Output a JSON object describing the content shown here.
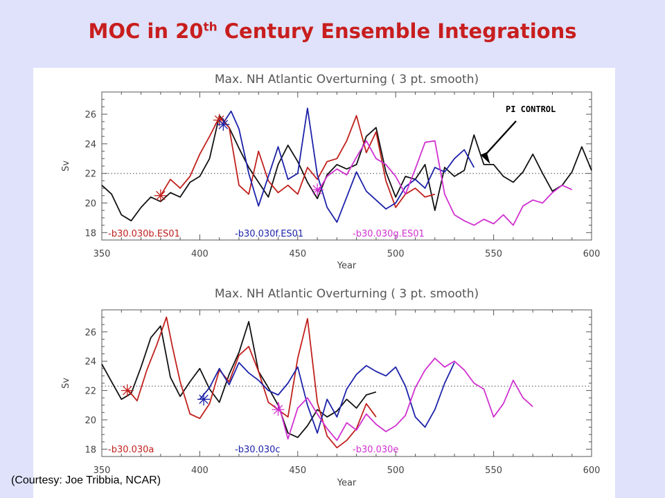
{
  "slide": {
    "title_main": "MOC in 20",
    "title_sup": "th",
    "title_rest": " Century Ensemble Integrations",
    "courtesy": "(Courtesy: Joe Tribbia, NCAR)"
  },
  "colors": {
    "red": "#c0201c",
    "blue": "#1c22a8",
    "magenta": "#d030d0",
    "black": "#111111",
    "title": "#c81e1e"
  },
  "chart_data": [
    {
      "type": "line",
      "title": "Max. NH Atlantic Overturning ( 3 pt. smooth)",
      "xlabel": "Year",
      "ylabel": "Sv",
      "xlim": [
        350,
        600
      ],
      "ylim": [
        17.5,
        27.5
      ],
      "xticks": [
        350,
        400,
        450,
        500,
        550,
        600
      ],
      "yticks": [
        18,
        20,
        22,
        24,
        26
      ],
      "reference_line": 22,
      "annotation": {
        "text": "PI CONTROL",
        "x": 550,
        "y": 22.5
      },
      "series": [
        {
          "name": "b30.030b.ES01",
          "color": "red",
          "x": [
            380,
            385,
            390,
            395,
            400,
            405,
            410,
            415,
            420,
            425,
            430,
            435,
            440,
            445,
            450,
            455,
            460,
            465,
            470,
            475,
            480,
            485,
            490,
            495,
            500,
            505,
            510,
            515,
            520
          ],
          "y": [
            20.5,
            21.6,
            21.0,
            21.8,
            23.3,
            24.5,
            25.8,
            25.1,
            21.2,
            20.6,
            23.5,
            21.5,
            20.7,
            21.2,
            20.6,
            22.4,
            21.6,
            22.8,
            23.0,
            24.2,
            25.9,
            23.4,
            24.8,
            21.5,
            19.7,
            20.6,
            21.0,
            20.4,
            20.6
          ]
        },
        {
          "name": "b30.030f.ES01",
          "color": "blue",
          "x": [
            412,
            416,
            420,
            425,
            430,
            435,
            440,
            445,
            450,
            455,
            460,
            465,
            470,
            475,
            480,
            485,
            490,
            495,
            500,
            505,
            510,
            515,
            520,
            525,
            530,
            535,
            540
          ],
          "y": [
            25.4,
            26.2,
            25.0,
            22.0,
            19.8,
            21.8,
            23.8,
            21.6,
            22.0,
            26.4,
            21.9,
            19.7,
            18.7,
            20.4,
            22.1,
            20.8,
            20.2,
            19.6,
            20.0,
            21.1,
            21.6,
            21.0,
            22.4,
            22.1,
            23.0,
            23.6,
            22.4
          ]
        },
        {
          "name": "b30.030g.ES01",
          "color": "magenta",
          "x": [
            460,
            465,
            470,
            475,
            480,
            485,
            490,
            495,
            500,
            505,
            510,
            515,
            520,
            525,
            530,
            535,
            540,
            545,
            550,
            555,
            560,
            565,
            570,
            575,
            580,
            585,
            590
          ],
          "y": [
            20.7,
            21.8,
            22.3,
            21.9,
            23.1,
            24.2,
            23.0,
            22.6,
            21.8,
            20.6,
            22.3,
            24.1,
            24.2,
            20.6,
            19.2,
            18.8,
            18.5,
            18.9,
            18.6,
            19.2,
            18.5,
            19.8,
            20.2,
            20.0,
            20.7,
            21.2,
            20.9
          ]
        },
        {
          "name": "PI CONTROL",
          "color": "black",
          "x": [
            350,
            355,
            360,
            365,
            370,
            375,
            380,
            385,
            390,
            395,
            400,
            405,
            410,
            415,
            420,
            425,
            430,
            435,
            440,
            445,
            450,
            455,
            460,
            465,
            470,
            475,
            480,
            485,
            490,
            495,
            500,
            505,
            510,
            515,
            520,
            525,
            530,
            535,
            540,
            545,
            550,
            555,
            560,
            565,
            570,
            575,
            580,
            585,
            590,
            595,
            600
          ],
          "y": [
            21.2,
            20.6,
            19.2,
            18.8,
            19.7,
            20.4,
            20.1,
            20.7,
            20.4,
            21.4,
            21.8,
            23.0,
            25.9,
            25.1,
            23.7,
            22.4,
            21.4,
            20.4,
            22.6,
            23.9,
            22.8,
            21.4,
            20.3,
            21.9,
            22.6,
            22.3,
            22.6,
            24.5,
            25.1,
            22.1,
            20.4,
            21.8,
            21.6,
            22.6,
            19.5,
            22.4,
            21.8,
            22.2,
            24.6,
            22.6,
            22.6,
            21.8,
            21.4,
            22.1,
            23.3,
            22.0,
            20.8,
            21.2,
            22.1,
            23.8,
            22.2
          ]
        }
      ]
    },
    {
      "type": "line",
      "title": "Max. NH Atlantic Overturning ( 3 pt. smooth)",
      "xlabel": "Year",
      "ylabel": "Sv",
      "xlim": [
        350,
        600
      ],
      "ylim": [
        17.5,
        27.5
      ],
      "xticks": [
        350,
        400,
        450,
        500,
        550,
        600
      ],
      "yticks": [
        18,
        20,
        22,
        24,
        26
      ],
      "reference_line": 22.3,
      "series": [
        {
          "name": "b30.030a",
          "color": "red",
          "x": [
            363,
            368,
            373,
            378,
            383,
            386,
            390,
            395,
            400,
            405,
            410,
            415,
            420,
            425,
            430,
            435,
            440,
            445,
            450,
            455,
            460,
            465,
            470,
            475,
            480,
            485,
            490
          ],
          "y": [
            22.1,
            21.3,
            23.4,
            25.1,
            27.0,
            25.0,
            22.6,
            20.4,
            20.1,
            21.1,
            23.4,
            22.6,
            24.4,
            25.0,
            23.3,
            21.2,
            20.7,
            20.2,
            24.2,
            26.9,
            21.2,
            18.9,
            18.1,
            18.6,
            19.4,
            21.1,
            20.2
          ]
        },
        {
          "name": "b30.030c",
          "color": "blue",
          "x": [
            400,
            405,
            410,
            415,
            420,
            425,
            430,
            435,
            440,
            445,
            450,
            455,
            460,
            465,
            470,
            475,
            480,
            485,
            490,
            495,
            500,
            505,
            510,
            515,
            520,
            525,
            530
          ],
          "y": [
            21.4,
            22.2,
            23.5,
            22.4,
            23.9,
            23.2,
            22.7,
            22.0,
            21.7,
            22.5,
            23.6,
            21.0,
            19.1,
            21.4,
            20.2,
            22.1,
            23.1,
            23.7,
            23.3,
            23.0,
            23.6,
            22.3,
            20.2,
            19.5,
            20.7,
            22.5,
            23.9
          ]
        },
        {
          "name": "b30.030e",
          "color": "magenta",
          "x": [
            440,
            445,
            450,
            455,
            460,
            465,
            470,
            475,
            480,
            485,
            490,
            495,
            500,
            505,
            510,
            515,
            520,
            525,
            530,
            535,
            540,
            545,
            550,
            555,
            560,
            565,
            570
          ],
          "y": [
            21.2,
            18.7,
            20.8,
            21.5,
            20.4,
            19.4,
            18.6,
            19.8,
            19.3,
            20.4,
            19.7,
            19.2,
            19.6,
            20.3,
            22.2,
            23.4,
            24.2,
            23.6,
            24.0,
            23.4,
            22.5,
            22.1,
            20.2,
            21.1,
            22.7,
            21.5,
            20.9
          ]
        },
        {
          "name": "",
          "color": "black",
          "x": [
            350,
            355,
            360,
            365,
            370,
            375,
            380,
            385,
            390,
            395,
            400,
            405,
            410,
            415,
            420,
            425,
            430,
            435,
            440,
            445,
            450,
            455,
            460,
            465,
            470,
            475,
            480,
            485,
            490
          ],
          "y": [
            23.8,
            22.6,
            21.4,
            21.8,
            23.6,
            25.6,
            26.4,
            22.9,
            21.6,
            22.6,
            23.5,
            22.1,
            21.2,
            23.1,
            24.6,
            26.7,
            23.3,
            22.2,
            21.0,
            19.1,
            18.8,
            19.6,
            20.7,
            20.2,
            20.6,
            21.4,
            20.8,
            21.7,
            21.9
          ]
        }
      ],
      "markers": [
        {
          "x": 363,
          "y": 22.0,
          "color": "red"
        },
        {
          "x": 402,
          "y": 21.4,
          "color": "blue"
        },
        {
          "x": 440,
          "y": 20.7,
          "color": "magenta"
        }
      ]
    }
  ],
  "markers_top": [
    {
      "x": 380,
      "y": 20.5,
      "color": "red"
    },
    {
      "x": 410,
      "y": 25.6,
      "color": "red"
    },
    {
      "x": 412,
      "y": 25.3,
      "color": "blue"
    },
    {
      "x": 460,
      "y": 20.9,
      "color": "magenta"
    }
  ]
}
